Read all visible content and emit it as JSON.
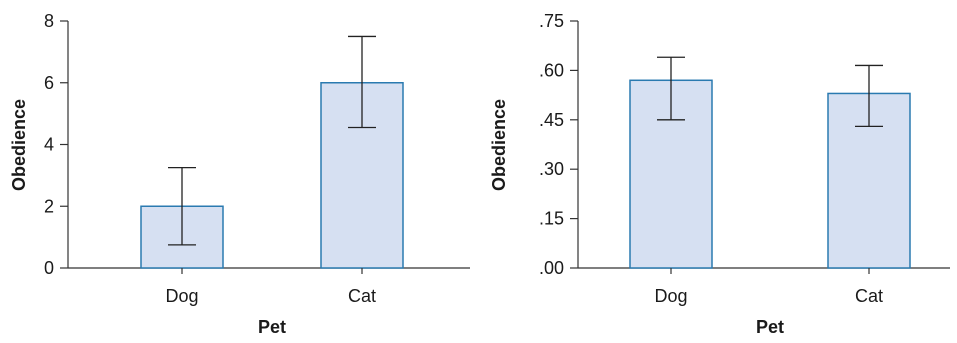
{
  "chart_data": [
    {
      "type": "bar",
      "categories": [
        "Dog",
        "Cat"
      ],
      "values": [
        2.0,
        6.0
      ],
      "error_low": [
        0.75,
        4.55
      ],
      "error_high": [
        3.25,
        7.5
      ],
      "xlabel": "Pet",
      "ylabel": "Obedience",
      "ylim": [
        0,
        8
      ],
      "yticks": [
        "0",
        "2",
        "4",
        "6",
        "8"
      ],
      "ytick_values": [
        0,
        2,
        4,
        6,
        8
      ],
      "grid": false,
      "bar_fill": "#d6e0f2",
      "bar_stroke": "#2a7ab0"
    },
    {
      "type": "bar",
      "categories": [
        "Dog",
        "Cat"
      ],
      "values": [
        0.57,
        0.53
      ],
      "error_low": [
        0.45,
        0.43
      ],
      "error_high": [
        0.64,
        0.615
      ],
      "xlabel": "Pet",
      "ylabel": "Obedience",
      "ylim": [
        0,
        0.75
      ],
      "yticks": [
        ".00",
        ".15",
        ".30",
        ".45",
        ".60",
        ".75"
      ],
      "ytick_values": [
        0,
        0.15,
        0.3,
        0.45,
        0.6,
        0.75
      ],
      "grid": false,
      "bar_fill": "#d6e0f2",
      "bar_stroke": "#2a7ab0"
    }
  ]
}
